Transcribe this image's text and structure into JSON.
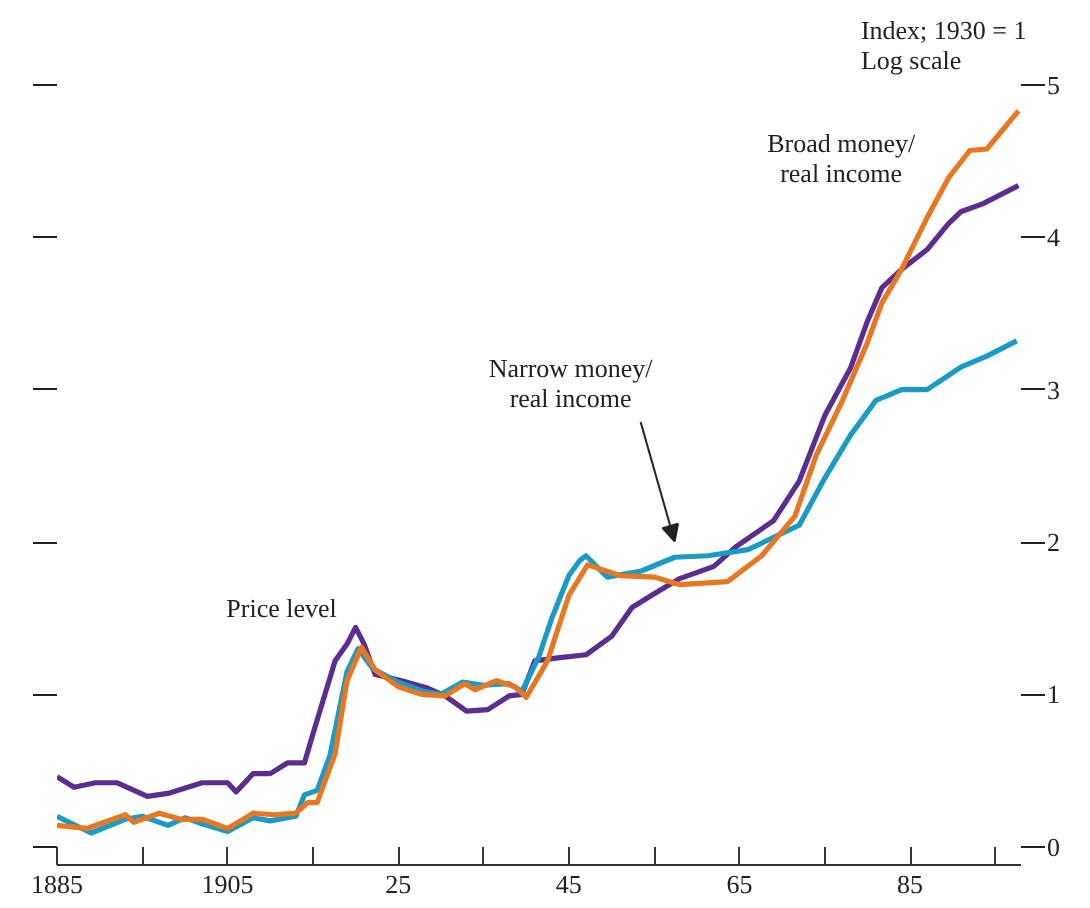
{
  "chart_data": {
    "type": "line",
    "ylabel": "Index;  1930 = 1\nLog scale",
    "xlim": [
      1885,
      1998
    ],
    "ylim": [
      -0.12,
      5
    ],
    "xticks": [
      {
        "value": 1885,
        "label": "1885"
      },
      {
        "value": 1895,
        "label": null
      },
      {
        "value": 1905,
        "label": "1905"
      },
      {
        "value": 1915,
        "label": null
      },
      {
        "value": 1925,
        "label": "25"
      },
      {
        "value": 1935,
        "label": null
      },
      {
        "value": 1945,
        "label": "45"
      },
      {
        "value": 1955,
        "label": null
      },
      {
        "value": 1965,
        "label": "65"
      },
      {
        "value": 1975,
        "label": null
      },
      {
        "value": 1985,
        "label": "85"
      },
      {
        "value": 1995,
        "label": null
      }
    ],
    "yticks": [
      0,
      1,
      2,
      3,
      4,
      5
    ],
    "grid": false,
    "line_style": "solid",
    "marker": "none",
    "series": [
      {
        "color": "#5b2d90",
        "x": [
          1885,
          1887,
          1889.5,
          1892,
          1895.6,
          1898,
          1902,
          1905,
          1906,
          1908,
          1910,
          1912,
          1914,
          1915,
          1917.6,
          1919,
          1920,
          1921,
          1922.3,
          1925.4,
          1928.5,
          1930.5,
          1933,
          1935.5,
          1938,
          1939.5,
          1941,
          1943.7,
          1947,
          1950,
          1952.4,
          1955,
          1958,
          1962,
          1964.6,
          1969,
          1972,
          1975,
          1978,
          1980,
          1981.7,
          1984,
          1987,
          1989.5,
          1991,
          1993.5,
          1997.7
        ],
        "values": [
          0.46,
          0.39,
          0.42,
          0.42,
          0.33,
          0.35,
          0.42,
          0.42,
          0.36,
          0.48,
          0.48,
          0.55,
          0.55,
          0.74,
          1.22,
          1.33,
          1.44,
          1.33,
          1.13,
          1.09,
          1.04,
          0.99,
          0.89,
          0.9,
          0.99,
          1.0,
          1.22,
          1.24,
          1.26,
          1.38,
          1.57,
          1.66,
          1.76,
          1.84,
          1.97,
          2.14,
          2.4,
          2.83,
          3.14,
          3.45,
          3.67,
          3.79,
          3.92,
          4.09,
          4.17,
          4.22,
          4.34
        ]
      },
      {
        "color": "#1a9bc7",
        "x": [
          1885,
          1889,
          1893,
          1895,
          1898,
          1900,
          1902,
          1905,
          1908,
          1910,
          1913,
          1914,
          1915.5,
          1917,
          1919,
          1920.3,
          1922,
          1925,
          1928,
          1930,
          1932.5,
          1935,
          1938,
          1939.5,
          1941.5,
          1943,
          1945,
          1946.3,
          1947,
          1949.5,
          1953.5,
          1957.4,
          1961.3,
          1966,
          1972,
          1975,
          1978,
          1981,
          1984,
          1987,
          1991,
          1994,
          1997.5
        ],
        "values": [
          0.2,
          0.09,
          0.18,
          0.2,
          0.14,
          0.19,
          0.15,
          0.1,
          0.19,
          0.17,
          0.2,
          0.34,
          0.37,
          0.6,
          1.15,
          1.3,
          1.17,
          1.08,
          1.02,
          1.0,
          1.08,
          1.06,
          1.07,
          1.02,
          1.25,
          1.5,
          1.78,
          1.88,
          1.91,
          1.77,
          1.81,
          1.9,
          1.91,
          1.95,
          2.11,
          2.42,
          2.7,
          2.93,
          3.0,
          3.0,
          3.15,
          3.22,
          3.32
        ]
      },
      {
        "color": "#e87722",
        "x": [
          1885,
          1888.5,
          1893,
          1894,
          1897,
          1899.5,
          1902,
          1905,
          1908,
          1910.5,
          1913,
          1914.4,
          1915.5,
          1917.6,
          1919,
          1920.7,
          1922.3,
          1925,
          1927.7,
          1930.5,
          1932.8,
          1934,
          1936.5,
          1938.7,
          1940,
          1942.5,
          1945,
          1947.2,
          1951,
          1955,
          1958,
          1963.6,
          1967.6,
          1971.5,
          1974,
          1977,
          1980,
          1981.7,
          1984,
          1987,
          1989.5,
          1992,
          1994,
          1997.7
        ],
        "values": [
          0.14,
          0.12,
          0.21,
          0.16,
          0.22,
          0.18,
          0.18,
          0.12,
          0.22,
          0.21,
          0.22,
          0.29,
          0.29,
          0.61,
          1.09,
          1.31,
          1.16,
          1.05,
          1.0,
          0.99,
          1.07,
          1.03,
          1.09,
          1.05,
          0.98,
          1.22,
          1.65,
          1.85,
          1.78,
          1.77,
          1.72,
          1.74,
          1.91,
          2.17,
          2.57,
          2.92,
          3.31,
          3.57,
          3.79,
          4.13,
          4.39,
          4.57,
          4.58,
          4.83
        ]
      }
    ],
    "annotations": [
      {
        "text": "Price level",
        "x": 1920,
        "y": 1.44
      },
      {
        "text": "Narrow money/\nreal income",
        "x": 1957.4,
        "y": 1.9
      },
      {
        "text": "Broad money/\nreal income",
        "x": 1987,
        "y": 4.13
      }
    ]
  }
}
